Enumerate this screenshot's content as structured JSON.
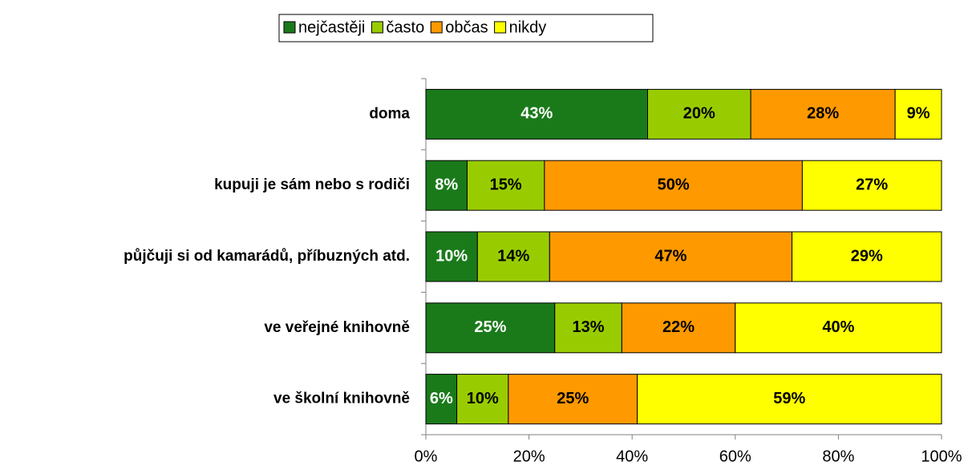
{
  "chart_data": {
    "type": "stacked_bar_horizontal",
    "categories": [
      "doma",
      "kupuji je sám nebo s rodiči",
      "půjčuji si od kamarádů, příbuzných atd.",
      "ve veřejné knihovně",
      "ve školní knihovně"
    ],
    "series": [
      {
        "name": "nejčastěji",
        "color": "#1a7a1a",
        "values": [
          43,
          8,
          10,
          25,
          6
        ],
        "value_labels": [
          "43%",
          "8%",
          "10%",
          "25%",
          "6%"
        ]
      },
      {
        "name": "často",
        "color": "#99cc00",
        "values": [
          20,
          15,
          14,
          13,
          10
        ],
        "value_labels": [
          "20%",
          "15%",
          "14%",
          "13%",
          "10%"
        ]
      },
      {
        "name": "občas",
        "color": "#ff9900",
        "values": [
          28,
          50,
          47,
          22,
          25
        ],
        "value_labels": [
          "28%",
          "50%",
          "47%",
          "22%",
          "25%"
        ]
      },
      {
        "name": "nikdy",
        "color": "#ffff00",
        "values": [
          9,
          27,
          29,
          40,
          59
        ],
        "value_labels": [
          "9%",
          "27%",
          "29%",
          "40%",
          "59%"
        ]
      }
    ],
    "xlim": [
      0,
      100
    ],
    "xticks": [
      {
        "value": 0,
        "label": "0%"
      },
      {
        "value": 20,
        "label": "20%"
      },
      {
        "value": 40,
        "label": "40%"
      },
      {
        "value": 60,
        "label": "60%"
      },
      {
        "value": 80,
        "label": "80%"
      },
      {
        "value": 100,
        "label": "100%"
      }
    ],
    "legend": "top"
  }
}
